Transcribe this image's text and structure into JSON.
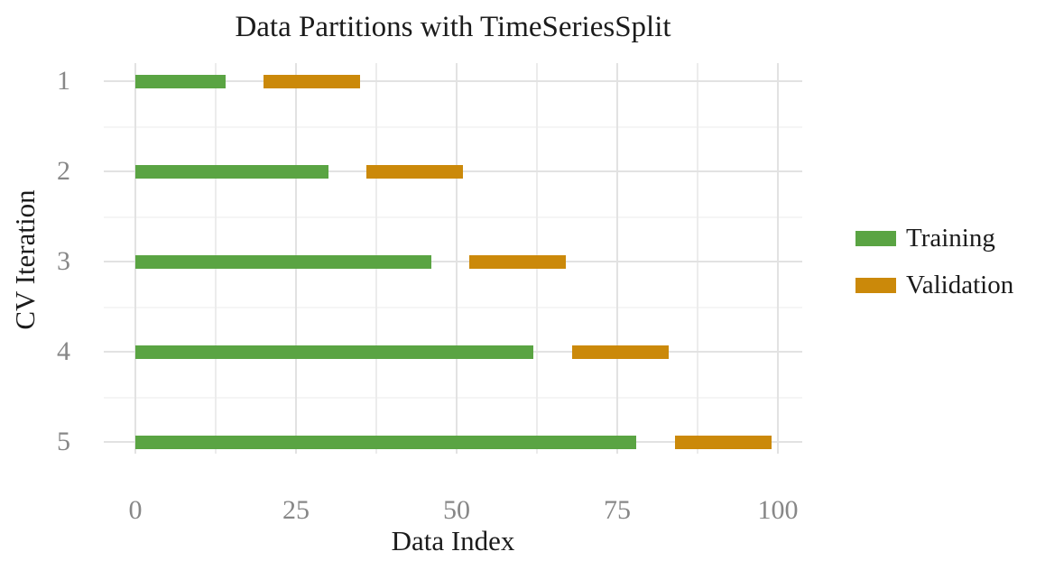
{
  "chart_data": {
    "type": "bar",
    "orientation": "horizontal",
    "title": "Data Partitions with TimeSeriesSplit",
    "xlabel": "Data Index",
    "ylabel": "CV Iteration",
    "xlim": [
      0,
      100
    ],
    "x_major_ticks": [
      0,
      25,
      50,
      75,
      100
    ],
    "x_minor_ticks": [
      12.5,
      37.5,
      62.5,
      87.5
    ],
    "y_ticks": [
      "1",
      "2",
      "3",
      "4",
      "5"
    ],
    "grid": "major+minor",
    "legend_position": "right-outside",
    "legend": [
      {
        "label": "Training",
        "color": "#5aa443"
      },
      {
        "label": "Validation",
        "color": "#cb890a"
      }
    ],
    "series": [
      {
        "name": "Training",
        "color": "#5aa443",
        "bars": [
          {
            "cv_iteration": 1,
            "start": 0,
            "end": 14
          },
          {
            "cv_iteration": 2,
            "start": 0,
            "end": 30
          },
          {
            "cv_iteration": 3,
            "start": 0,
            "end": 46
          },
          {
            "cv_iteration": 4,
            "start": 0,
            "end": 62
          },
          {
            "cv_iteration": 5,
            "start": 0,
            "end": 78
          }
        ]
      },
      {
        "name": "Validation",
        "color": "#cb890a",
        "bars": [
          {
            "cv_iteration": 1,
            "start": 20,
            "end": 35
          },
          {
            "cv_iteration": 2,
            "start": 36,
            "end": 51
          },
          {
            "cv_iteration": 3,
            "start": 52,
            "end": 67
          },
          {
            "cv_iteration": 4,
            "start": 68,
            "end": 83
          },
          {
            "cv_iteration": 5,
            "start": 84,
            "end": 99
          }
        ]
      }
    ],
    "colors": {
      "title_text": "#1b1b1b",
      "axis_label_text": "#1b1b1b",
      "tick_label_text": "#878787",
      "grid_major": "#e2e2e2",
      "grid_minor": "#f0f0f0",
      "background": "#ffffff"
    }
  }
}
